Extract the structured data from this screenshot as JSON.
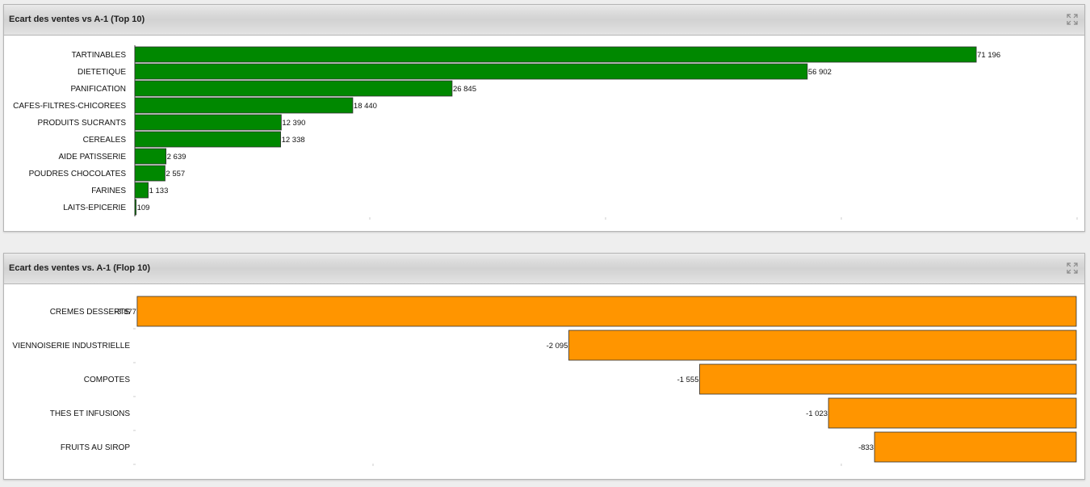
{
  "panels": {
    "top": {
      "title": "Ecart des ventes vs A-1 (Top 10)"
    },
    "flop": {
      "title": "Ecart des ventes vs. A-1 (Flop 10)"
    }
  },
  "icons": {
    "expand": "expand-icon"
  },
  "colors": {
    "positive_bar": "#008800",
    "negative_bar": "#ff9500",
    "bar_border": "#333333"
  },
  "chart_data": [
    {
      "type": "bar",
      "orientation": "horizontal",
      "title": "Ecart des ventes vs A-1 (Top 10)",
      "categories": [
        "TARTINABLES",
        "DIETETIQUE",
        "PANIFICATION",
        "CAFES-FILTRES-CHICOREES",
        "PRODUITS SUCRANTS",
        "CEREALES",
        "AIDE PATISSERIE",
        "POUDRES CHOCOLATES",
        "FARINES",
        "LAITS-EPICERIE"
      ],
      "values": [
        71196,
        56902,
        26845,
        18440,
        12390,
        12338,
        2639,
        2557,
        1133,
        109
      ],
      "value_labels": [
        "71 196",
        "56 902",
        "26 845",
        "18 440",
        "12 390",
        "12 338",
        "2 639",
        "2 557",
        "1 133",
        "109"
      ],
      "xlim": [
        0,
        80000
      ],
      "grid": false
    },
    {
      "type": "bar",
      "orientation": "horizontal",
      "title": "Ecart des ventes vs. A-1 (Flop 10)",
      "categories": [
        "CREMES DESSERTS",
        "VIENNOISERIE INDUSTRIELLE",
        "COMPOTES",
        "THES ET INFUSIONS",
        "FRUITS AU SIROP"
      ],
      "values": [
        -3877,
        -2095,
        -1555,
        -1023,
        -833
      ],
      "value_labels": [
        "-3 877",
        "-2 095",
        "-1 555",
        "-1 023",
        "-833"
      ],
      "xlim": [
        -4000,
        0
      ],
      "grid": false
    }
  ]
}
